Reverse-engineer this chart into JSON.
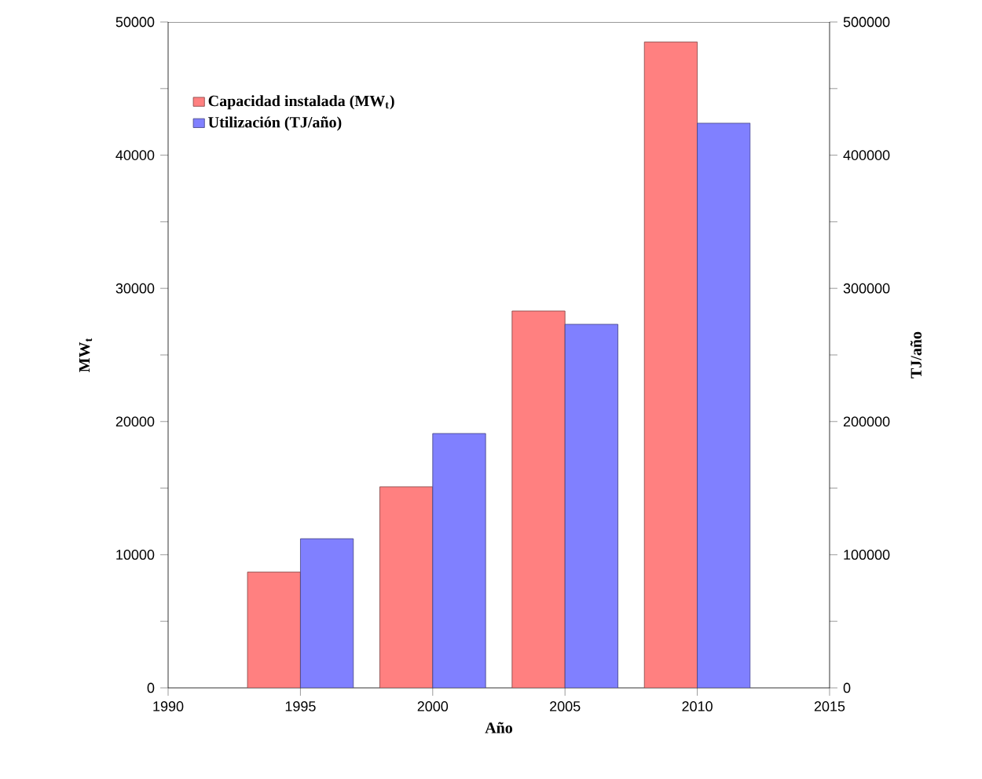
{
  "chart_data": {
    "type": "bar",
    "xlabel": "Año",
    "ylabel": "MW$_{t}$",
    "y2label": "TJ/año",
    "x": [
      1995,
      2000,
      2005,
      2010
    ],
    "series": [
      {
        "name": "Capacidad instalada (MW$_{t}$)",
        "color": "#ff8080",
        "values": [
          8700,
          15100,
          28300,
          48500
        ]
      },
      {
        "name": "Utilización (TJ/año)",
        "color": "#8080ff",
        "axis": "y2",
        "values": [
          112000,
          191000,
          273000,
          424000
        ]
      }
    ],
    "xlim": [
      1990,
      2015
    ],
    "xticks": [
      1990,
      1995,
      2000,
      2005,
      2010,
      2015
    ],
    "ylim": [
      0,
      50000
    ],
    "yticks": [
      0,
      {
        "value": 5000,
        "label": null
      },
      10000,
      {
        "value": 15000,
        "label": null
      },
      20000,
      {
        "value": 25000,
        "label": null
      },
      30000,
      {
        "value": 35000,
        "label": null
      },
      40000,
      {
        "value": 45000,
        "label": null
      },
      50000
    ],
    "y2lim": [
      0,
      500000
    ],
    "y2ticks": [
      0,
      {
        "value": 50000,
        "label": null
      },
      100000,
      {
        "value": 150000,
        "label": null
      },
      200000,
      {
        "value": 250000,
        "label": null
      },
      300000,
      {
        "value": 350000,
        "label": null
      },
      400000,
      {
        "value": 450000,
        "label": null
      },
      500000
    ],
    "legend": "top left",
    "grid": false
  }
}
